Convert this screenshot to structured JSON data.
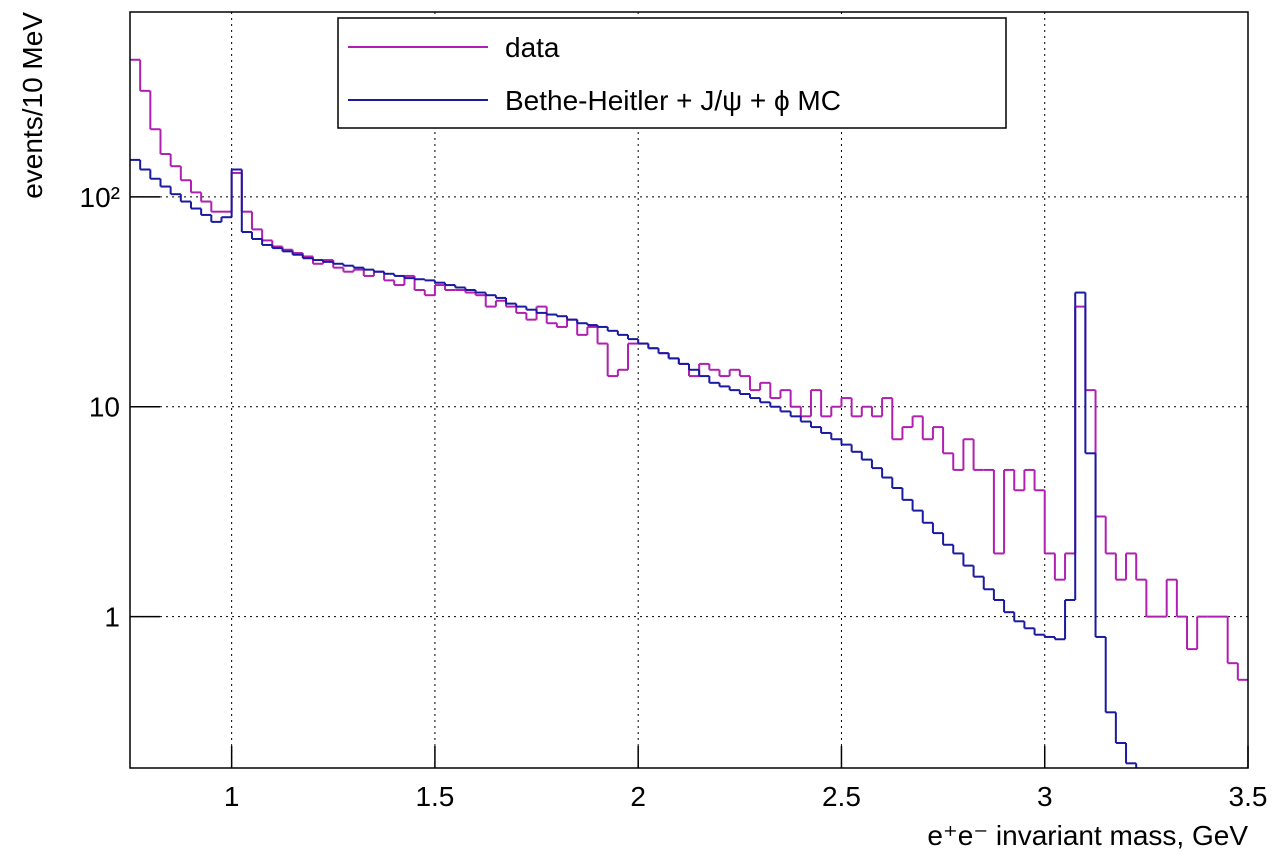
{
  "chart_data": {
    "type": "histogram",
    "xlabel": "e⁺e⁻ invariant mass, GeV",
    "ylabel": "events/10 MeV",
    "log_y": true,
    "grid": true,
    "legend": "top",
    "xlim": [
      0.75,
      3.5
    ],
    "ylim": [
      0.19,
      760
    ],
    "xticks": [
      1,
      1.5,
      2,
      2.5,
      3,
      3.5
    ],
    "yticks": [
      1,
      10,
      {
        "value": 100,
        "label": "10²"
      }
    ],
    "bins": [
      0.75,
      0.775,
      0.8,
      0.825,
      0.85,
      0.875,
      0.9,
      0.925,
      0.95,
      0.975,
      1.0,
      1.025,
      1.05,
      1.075,
      1.1,
      1.125,
      1.15,
      1.175,
      1.2,
      1.225,
      1.25,
      1.275,
      1.3,
      1.325,
      1.35,
      1.375,
      1.4,
      1.425,
      1.45,
      1.475,
      1.5,
      1.525,
      1.55,
      1.575,
      1.6,
      1.625,
      1.65,
      1.675,
      1.7,
      1.725,
      1.75,
      1.775,
      1.8,
      1.825,
      1.85,
      1.875,
      1.9,
      1.925,
      1.95,
      1.975,
      2.0,
      2.025,
      2.05,
      2.075,
      2.1,
      2.125,
      2.15,
      2.175,
      2.2,
      2.225,
      2.25,
      2.275,
      2.3,
      2.325,
      2.35,
      2.375,
      2.4,
      2.425,
      2.45,
      2.475,
      2.5,
      2.525,
      2.55,
      2.575,
      2.6,
      2.625,
      2.65,
      2.675,
      2.7,
      2.725,
      2.75,
      2.775,
      2.8,
      2.825,
      2.85,
      2.875,
      2.9,
      2.925,
      2.95,
      2.975,
      3.0,
      3.025,
      3.05,
      3.075,
      3.1,
      3.125,
      3.15,
      3.175,
      3.2,
      3.225,
      3.25,
      3.275,
      3.3,
      3.325,
      3.35,
      3.375,
      3.4,
      3.425,
      3.45,
      3.475,
      3.5
    ],
    "series": [
      {
        "name": "data",
        "color": "#b020b0",
        "values": [
          450,
          320,
          210,
          160,
          140,
          120,
          105,
          95,
          85,
          85,
          130,
          85,
          70,
          62,
          58,
          56,
          54,
          52,
          48,
          50,
          46,
          44,
          45,
          42,
          44,
          40,
          38,
          42,
          36,
          34,
          38,
          36,
          36,
          35,
          34,
          30,
          32,
          30,
          28,
          26,
          30,
          25,
          24,
          26,
          22,
          24,
          20,
          14,
          15,
          20,
          20,
          19,
          18,
          17,
          16,
          14,
          16,
          15,
          14,
          15,
          14,
          12,
          13,
          11,
          12,
          10,
          9,
          12,
          9,
          10,
          11,
          9,
          10,
          9,
          11,
          7,
          8,
          9,
          7,
          8,
          6,
          5,
          7,
          5,
          5,
          2,
          5,
          4,
          5,
          4,
          2,
          1.5,
          2,
          30,
          12,
          3,
          2,
          1.5,
          2,
          1.5,
          1,
          1,
          1.5,
          1,
          0.7,
          1,
          1,
          1,
          0.6,
          0.5
        ]
      },
      {
        "name": "Bethe-Heitler + J/ψ + ϕ MC",
        "color": "#1a1aa0",
        "values": [
          150,
          135,
          122,
          112,
          103,
          95,
          88,
          82,
          76,
          80,
          135,
          68,
          63,
          59,
          57,
          55,
          53,
          51,
          50,
          49,
          48,
          47,
          46,
          45,
          44,
          43,
          42,
          41,
          40.5,
          40,
          39,
          38,
          37,
          36,
          35,
          34,
          33,
          31,
          30,
          29,
          28,
          27.5,
          27,
          26,
          25,
          24.5,
          24,
          23,
          22,
          21,
          20,
          19,
          18,
          17,
          16,
          15,
          14,
          13,
          12.5,
          12,
          11.5,
          11,
          10.5,
          10,
          9.5,
          9,
          8.5,
          8,
          7.5,
          7,
          6.6,
          6.1,
          5.6,
          5.1,
          4.6,
          4.1,
          3.6,
          3.2,
          2.8,
          2.5,
          2.2,
          2.0,
          1.75,
          1.55,
          1.35,
          1.2,
          1.05,
          0.95,
          0.88,
          0.82,
          0.8,
          0.78,
          1.2,
          35,
          6,
          0.8,
          0.35,
          0.25,
          0.2,
          0.17,
          0.15,
          0.15,
          0.15,
          0.15,
          0.15,
          0.15,
          0.15,
          0.15,
          0.15,
          0.15
        ]
      }
    ]
  }
}
